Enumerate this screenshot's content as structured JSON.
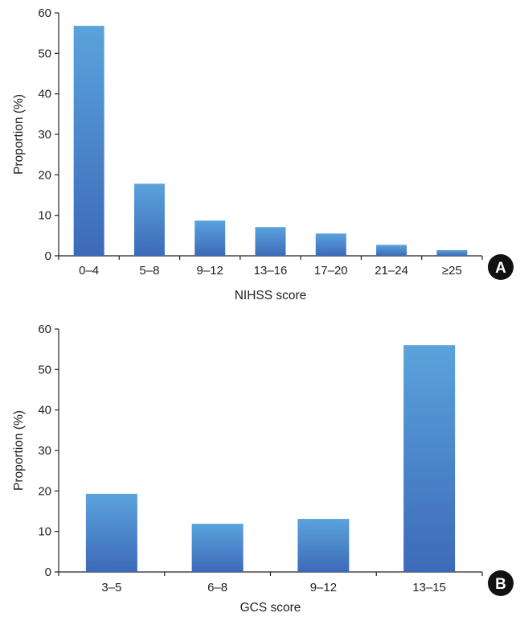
{
  "colors": {
    "bar_top": "#5aa3dc",
    "bar_bottom": "#3d6ab8",
    "axis": "#222222",
    "badge": "#111111"
  },
  "chart_data": [
    {
      "type": "bar",
      "panel_label": "A",
      "xlabel": "NIHSS score",
      "ylabel": "Proportion (%)",
      "ylim": [
        0,
        60
      ],
      "yticks": [
        "0",
        "10",
        "20",
        "30",
        "40",
        "50",
        "60"
      ],
      "categories": [
        "0–4",
        "5–8",
        "9–12",
        "13–16",
        "17–20",
        "21–24",
        "≥25"
      ],
      "values": [
        56.8,
        17.8,
        8.7,
        7.1,
        5.5,
        2.7,
        1.4
      ]
    },
    {
      "type": "bar",
      "panel_label": "B",
      "xlabel": "GCS score",
      "ylabel": "Proportion (%)",
      "ylim": [
        0,
        60
      ],
      "yticks": [
        "0",
        "10",
        "20",
        "30",
        "40",
        "50",
        "60"
      ],
      "categories": [
        "3–5",
        "6–8",
        "9–12",
        "13–15"
      ],
      "values": [
        19.3,
        11.9,
        13.1,
        56.0
      ]
    }
  ]
}
